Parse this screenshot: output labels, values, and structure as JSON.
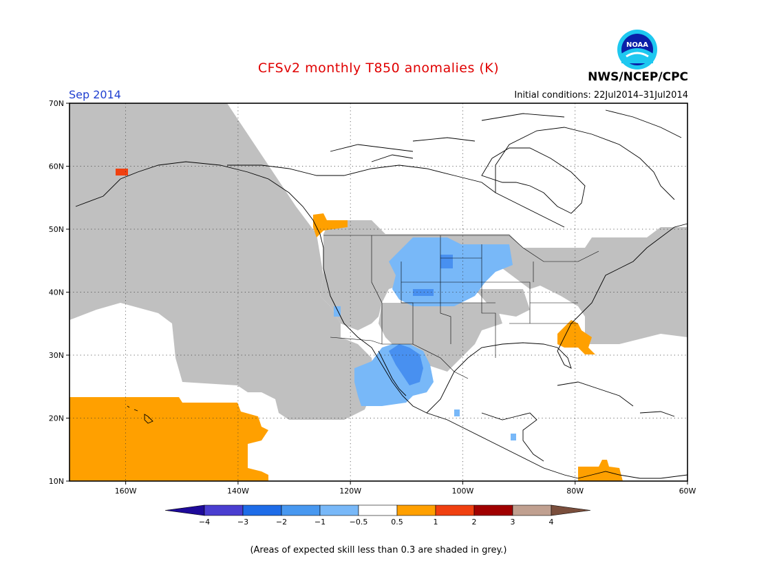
{
  "header": {
    "title": "CFSv2 monthly T850 anomalies (K)",
    "month": "Sep 2014",
    "initial_conditions": "Initial conditions: 22Jul2014–31Jul2014",
    "agency": "NWS/NCEP/CPC",
    "logo_text": "NOAA"
  },
  "map": {
    "lat_labels": [
      "70N",
      "60N",
      "50N",
      "40N",
      "30N",
      "20N",
      "10N"
    ],
    "lon_labels": [
      "160W",
      "140W",
      "120W",
      "100W",
      "80W",
      "60W"
    ],
    "lat_range": [
      10,
      70
    ],
    "lon_range": [
      -170,
      -60
    ],
    "colors": {
      "grey": "#c0c0c0",
      "light_blue": "#78b8f8",
      "mid_blue": "#4890f0",
      "orange": "#ffa000",
      "red_orange": "#f04010",
      "land_outline": "#000000"
    }
  },
  "colorbar": {
    "labels": [
      "−4",
      "−3",
      "−2",
      "−1",
      "−0.5",
      "0.5",
      "1",
      "2",
      "3",
      "4"
    ],
    "colors": [
      "#1e0a9a",
      "#4a3ed0",
      "#1e6ce8",
      "#4898f0",
      "#78b8f8",
      "#ffffff",
      "#ffa000",
      "#f04010",
      "#a00000",
      "#c0a090",
      "#7a4e3c"
    ]
  },
  "footnote": "(Areas of expected skill less than 0.3 are shaded in grey.)"
}
